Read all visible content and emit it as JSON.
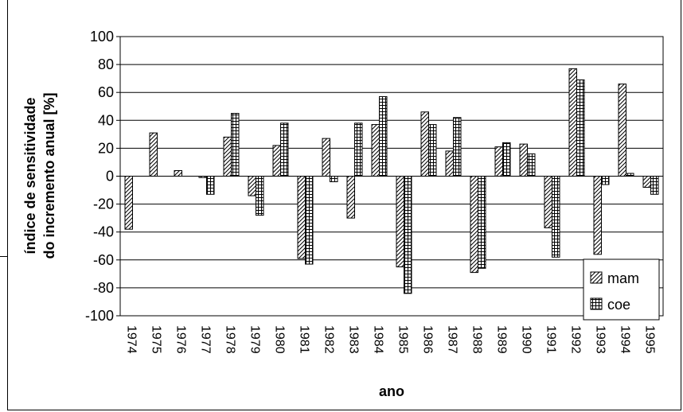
{
  "chart_data": {
    "type": "bar",
    "title": "",
    "xlabel": "ano",
    "ylabel_line1": "índice de sensitividade",
    "ylabel_line2": "do incremento anual [%]",
    "ylim": [
      -100,
      100
    ],
    "ytick_step": 20,
    "yticks": [
      "100",
      "80",
      "60",
      "40",
      "20",
      "0",
      "-20",
      "-40",
      "-60",
      "-80",
      "-100"
    ],
    "grid": true,
    "legend_position": "bottom-right",
    "categories": [
      "1974",
      "1975",
      "1976",
      "1977",
      "1978",
      "1979",
      "1980",
      "1981",
      "1982",
      "1983",
      "1984",
      "1985",
      "1986",
      "1987",
      "1988",
      "1989",
      "1990",
      "1991",
      "1992",
      "1993",
      "1994",
      "1995"
    ],
    "series": [
      {
        "name": "mam",
        "pattern": "diagonal-hatch",
        "values": [
          -38,
          31,
          4,
          -1,
          28,
          -14,
          22,
          -59,
          27,
          -30,
          37,
          -65,
          46,
          18,
          -69,
          21,
          23,
          -37,
          77,
          -56,
          66,
          -8
        ]
      },
      {
        "name": "coe",
        "pattern": "grid-hatch",
        "values": [
          0,
          0,
          0,
          -13,
          45,
          -28,
          38,
          -63,
          -4,
          38,
          57,
          -84,
          37,
          42,
          -66,
          24,
          16,
          -58,
          69,
          -6,
          2,
          -13
        ]
      }
    ]
  }
}
